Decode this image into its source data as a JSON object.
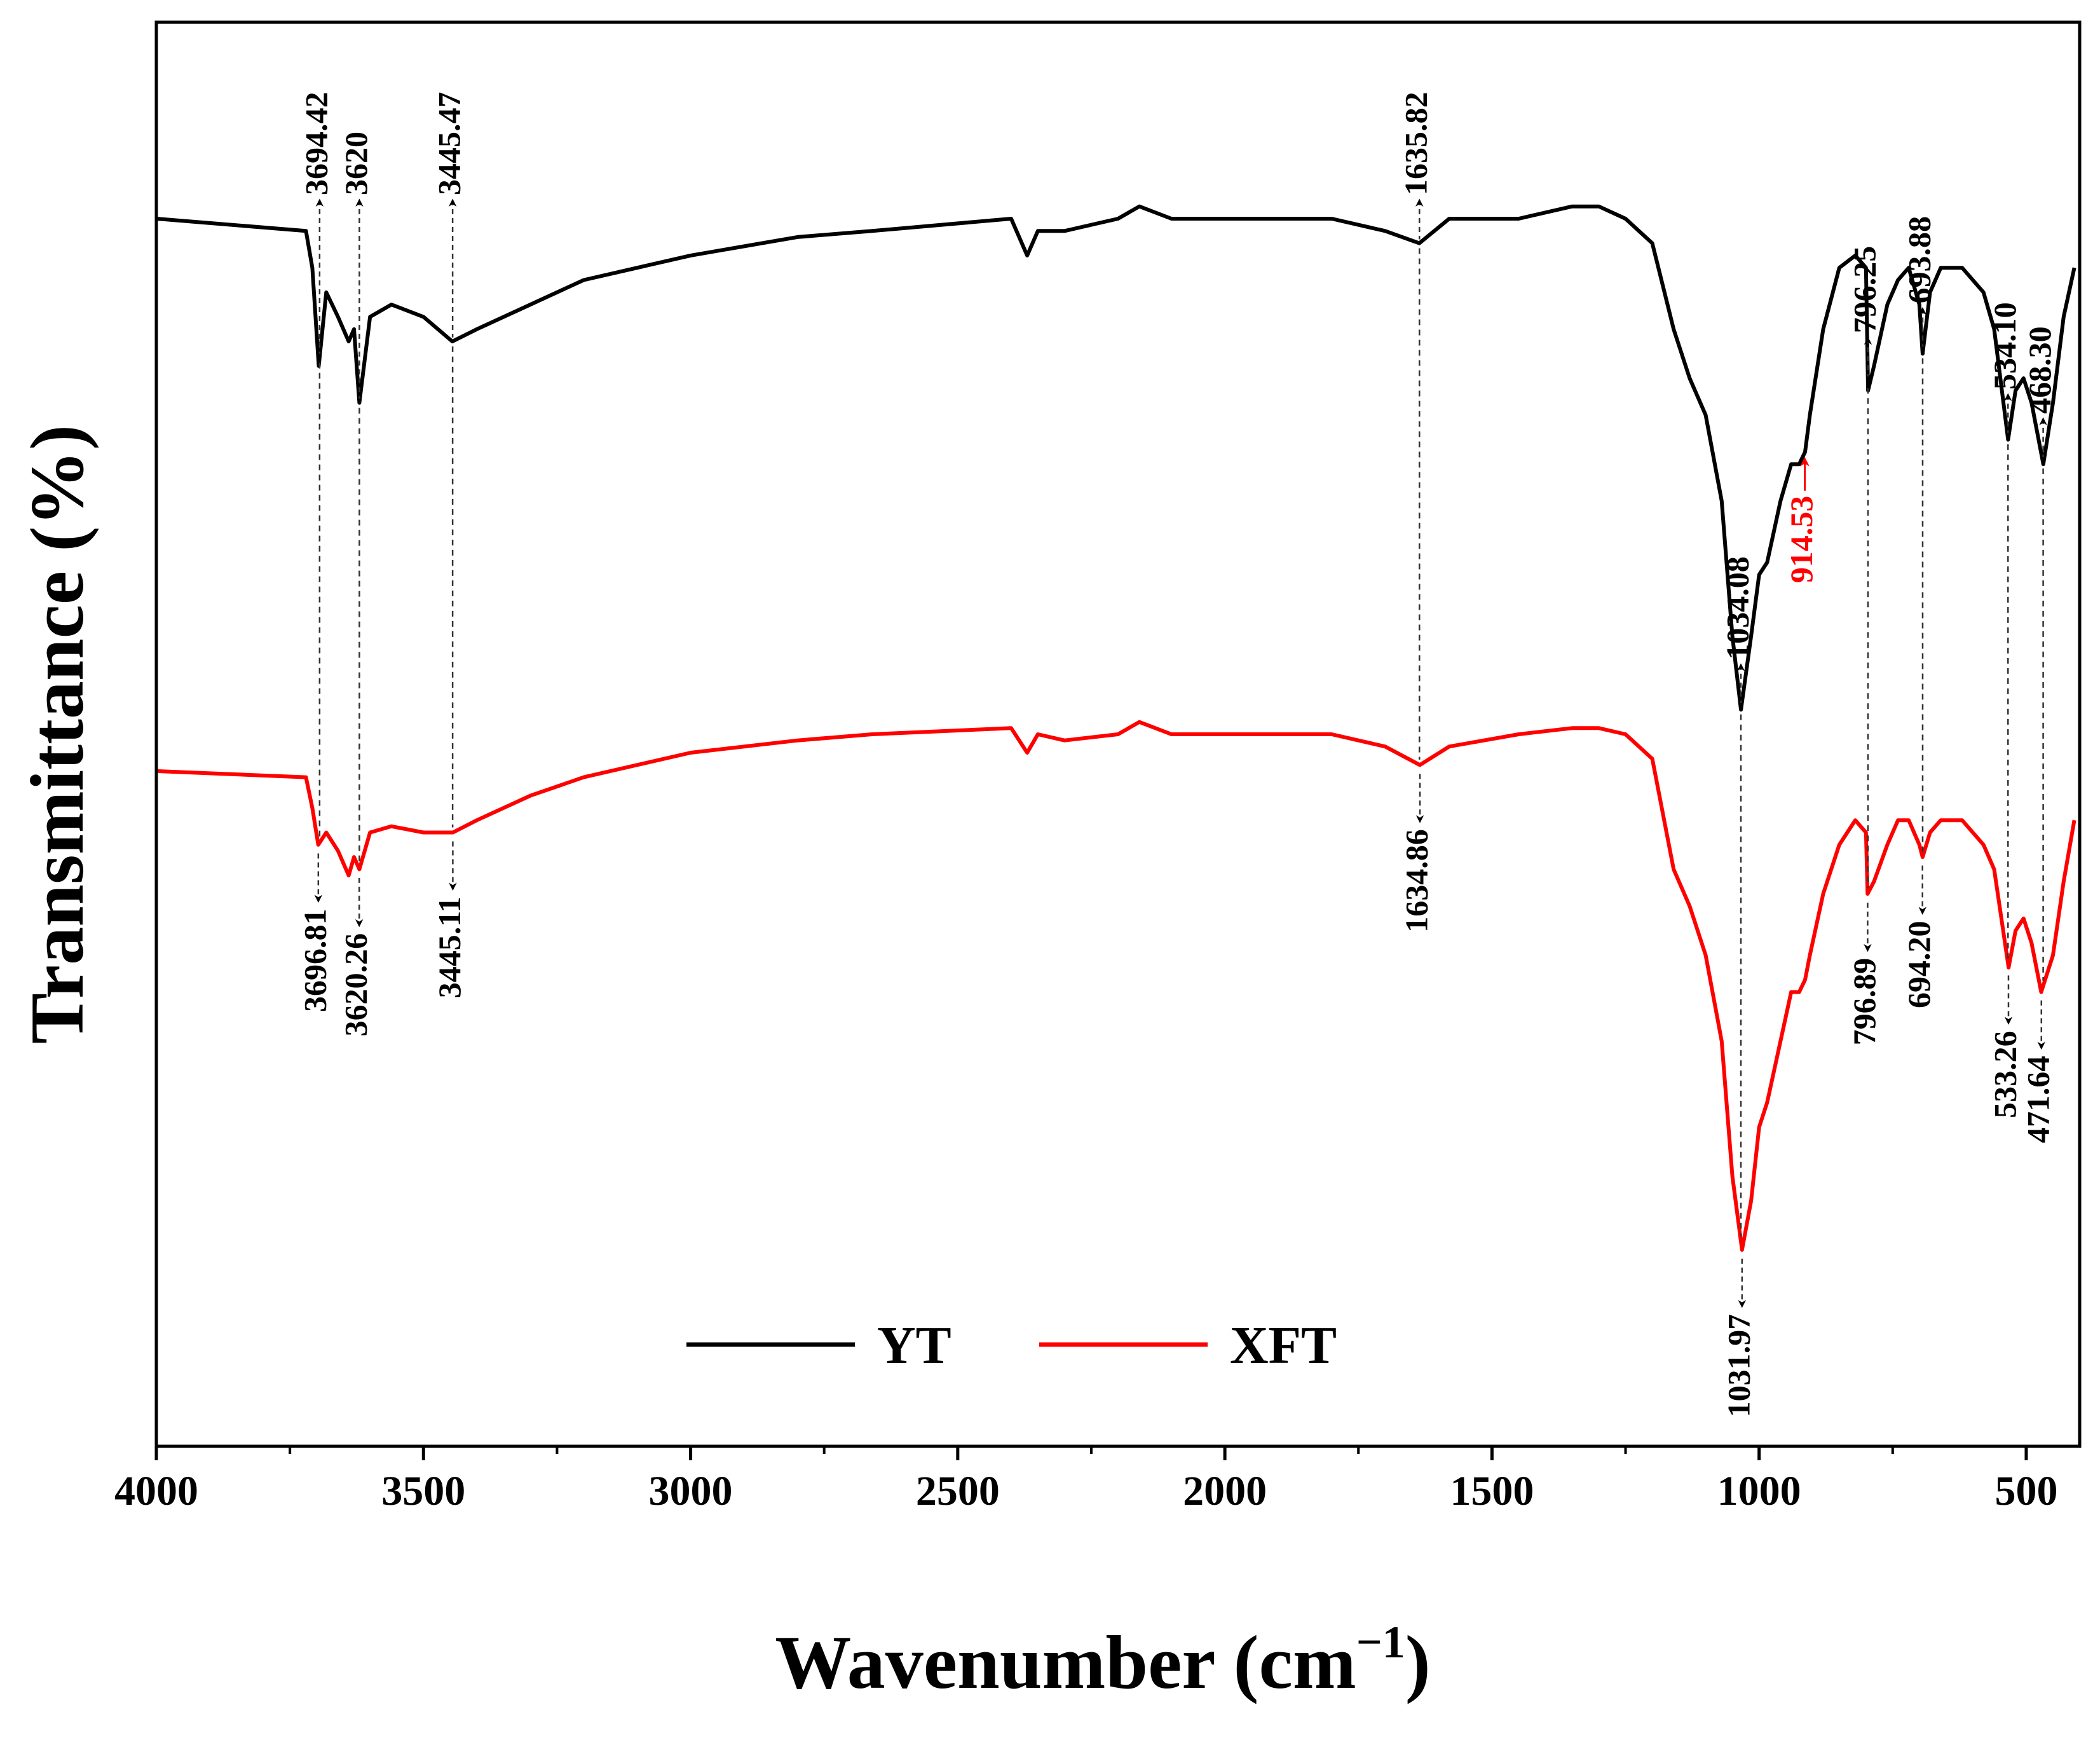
{
  "chart_data": {
    "type": "line",
    "xlabel": "Wavenumber (cm",
    "xlabel_superscript": "−1",
    "xlabel_close": ")",
    "ylabel": "Transmittance (%)",
    "xlim": [
      4000,
      400
    ],
    "x_reversed": true,
    "y_ticks_shown": false,
    "grid": false,
    "legend_position": "bottom-center",
    "xticks": [
      4000,
      3500,
      3000,
      2500,
      2000,
      1500,
      1000,
      500
    ],
    "xtick_labels": [
      "4000",
      "3500",
      "3000",
      "2500",
      "2000",
      "1500",
      "1000",
      "500"
    ],
    "series": [
      {
        "name": "YT",
        "color": "#000000",
        "x": [
          4000,
          3720,
          3708,
          3696,
          3682,
          3660,
          3640,
          3630,
          3620,
          3600,
          3560,
          3500,
          3446,
          3400,
          3300,
          3200,
          3000,
          2800,
          2660,
          2400,
          2370,
          2350,
          2300,
          2200,
          2160,
          2100,
          2000,
          1900,
          1800,
          1700,
          1636,
          1580,
          1450,
          1350,
          1300,
          1250,
          1200,
          1160,
          1130,
          1100,
          1070,
          1050,
          1034,
          1015,
          1000,
          985,
          960,
          940,
          925,
          914,
          905,
          880,
          850,
          820,
          800,
          796,
          785,
          760,
          740,
          720,
          700,
          694,
          680,
          660,
          620,
          580,
          560,
          534,
          520,
          505,
          490,
          468,
          450,
          430,
          410
        ],
        "y": [
          100,
          99,
          96,
          88,
          94,
          92,
          90,
          91,
          85,
          92,
          93,
          92,
          90,
          91,
          93,
          95,
          97,
          98.5,
          99,
          100,
          97,
          99,
          99,
          100,
          101,
          100,
          100,
          100,
          100,
          99,
          98,
          100,
          100,
          101,
          101,
          100,
          98,
          91,
          87,
          84,
          77,
          66,
          60,
          66,
          71,
          72,
          77,
          80,
          80,
          81,
          84,
          91,
          96,
          97,
          96,
          86,
          88,
          93,
          95,
          96,
          93,
          89,
          94,
          96,
          96,
          94,
          91,
          82,
          86,
          87,
          85,
          80,
          85,
          92,
          96
        ]
      },
      {
        "name": "XFT",
        "color": "#ff0000",
        "x": [
          4000,
          3720,
          3708,
          3697,
          3682,
          3660,
          3640,
          3630,
          3620,
          3600,
          3560,
          3500,
          3445,
          3400,
          3300,
          3200,
          3000,
          2800,
          2660,
          2400,
          2370,
          2350,
          2300,
          2200,
          2160,
          2100,
          2000,
          1900,
          1800,
          1700,
          1635,
          1580,
          1450,
          1350,
          1300,
          1250,
          1200,
          1160,
          1130,
          1100,
          1070,
          1050,
          1032,
          1015,
          1000,
          985,
          960,
          940,
          925,
          914,
          905,
          880,
          850,
          820,
          800,
          797,
          785,
          760,
          740,
          720,
          700,
          694,
          680,
          660,
          620,
          580,
          560,
          533,
          520,
          505,
          490,
          472,
          450,
          430,
          410
        ],
        "y": [
          55,
          54.5,
          52,
          49,
          50,
          48.5,
          46.5,
          48,
          47,
          50,
          50.5,
          50,
          50,
          51,
          53,
          54.5,
          56.5,
          57.5,
          58,
          58.5,
          56.5,
          58,
          57.5,
          58,
          59,
          58,
          58,
          58,
          58,
          57,
          55.5,
          57,
          58,
          58.5,
          58.5,
          58,
          56,
          47,
          44,
          40,
          33,
          22,
          16,
          20,
          26,
          28,
          33,
          37,
          37,
          38,
          40,
          45,
          49,
          51,
          50,
          45,
          46,
          49,
          51,
          51,
          49,
          48,
          50,
          51,
          51,
          49,
          47,
          39,
          42,
          43,
          41,
          37,
          40,
          46,
          51
        ]
      }
    ],
    "annotations": [
      {
        "series": "YT",
        "text": "3694.42",
        "x": 3694.42,
        "color": "#000000"
      },
      {
        "series": "YT",
        "text": "3620",
        "x": 3620,
        "color": "#000000"
      },
      {
        "series": "YT",
        "text": "3445.47",
        "x": 3445.47,
        "color": "#000000"
      },
      {
        "series": "YT",
        "text": "1635.82",
        "x": 1635.82,
        "color": "#000000"
      },
      {
        "series": "YT",
        "text": "1034.08",
        "x": 1034.08,
        "color": "#000000"
      },
      {
        "series": "YT",
        "text": "914.53",
        "x": 914.53,
        "color": "#ff0000"
      },
      {
        "series": "YT",
        "text": "796.25",
        "x": 796.25,
        "color": "#000000"
      },
      {
        "series": "YT",
        "text": "693.88",
        "x": 693.88,
        "color": "#000000"
      },
      {
        "series": "YT",
        "text": "534.10",
        "x": 534.1,
        "color": "#000000"
      },
      {
        "series": "YT",
        "text": "468.30",
        "x": 468.3,
        "color": "#000000"
      },
      {
        "series": "XFT",
        "text": "3696.81",
        "x": 3696.81,
        "color": "#000000"
      },
      {
        "series": "XFT",
        "text": "3620.26",
        "x": 3620.26,
        "color": "#000000"
      },
      {
        "series": "XFT",
        "text": "3445.11",
        "x": 3445.11,
        "color": "#000000"
      },
      {
        "series": "XFT",
        "text": "1634.86",
        "x": 1634.86,
        "color": "#000000"
      },
      {
        "series": "XFT",
        "text": "1031.97",
        "x": 1031.97,
        "color": "#000000"
      },
      {
        "series": "XFT",
        "text": "796.89",
        "x": 796.89,
        "color": "#000000"
      },
      {
        "series": "XFT",
        "text": "694.20",
        "x": 694.2,
        "color": "#000000"
      },
      {
        "series": "XFT",
        "text": "533.26",
        "x": 533.26,
        "color": "#000000"
      },
      {
        "series": "XFT",
        "text": "471.64",
        "x": 471.64,
        "color": "#000000"
      }
    ]
  }
}
